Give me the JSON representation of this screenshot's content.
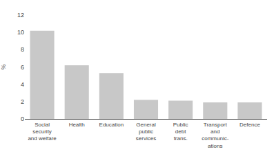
{
  "chart_data": {
    "type": "bar",
    "categories": [
      "Social\nsecurity\nand welfare",
      "Health",
      "Education",
      "General\npublic\nservices",
      "Public\ndebt\ntrans.",
      "Transport\nand\ncommunic-\nations",
      "Defence"
    ],
    "values": [
      10.2,
      6.2,
      5.3,
      2.2,
      2.1,
      1.9,
      1.9
    ],
    "color": "#c8c8c8",
    "ylabel": "%",
    "ylim": [
      0,
      12
    ],
    "yticks": [
      0,
      2,
      4,
      6,
      8,
      10,
      12
    ],
    "grid": false
  }
}
